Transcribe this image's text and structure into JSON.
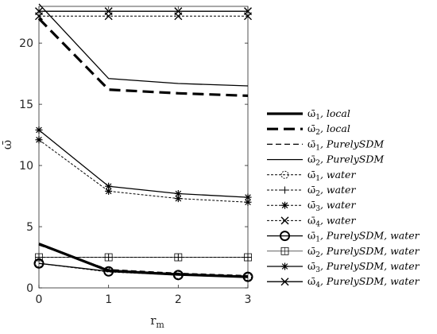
{
  "chart_data": {
    "type": "line",
    "xlabel": "r",
    "xlabel_sub": "m",
    "ylabel": "ω̄",
    "xlim": [
      0,
      3
    ],
    "ylim": [
      0,
      23
    ],
    "xticks": [
      "0",
      "1",
      "2",
      "3"
    ],
    "yticks": [
      "0",
      "5",
      "10",
      "15",
      "20"
    ],
    "grid": false,
    "legend_position": "outside-right",
    "x": [
      0,
      1,
      2,
      3
    ],
    "series": [
      {
        "name": "ω̄1, local",
        "legend_base": "ω̄",
        "legend_sub": "1",
        "legend_tail": ", local",
        "values": [
          3.6,
          1.4,
          1.1,
          0.9
        ],
        "style": "solid",
        "width": 3.2,
        "marker": "none"
      },
      {
        "name": "ω̄2, local",
        "legend_base": "ω̄",
        "legend_sub": "2",
        "legend_tail": ", local",
        "values": [
          22.0,
          16.2,
          15.9,
          15.7
        ],
        "style": "dashed-thick",
        "width": 3.2,
        "marker": "none"
      },
      {
        "name": "ω̄1, PurelySDM",
        "legend_base": "ω̄",
        "legend_sub": "1",
        "legend_tail": ", PurelySDM",
        "values": [
          3.5,
          1.5,
          1.2,
          1.0
        ],
        "style": "dashed",
        "width": 1.3,
        "marker": "none"
      },
      {
        "name": "ω̄2, PurelySDM",
        "legend_base": "ω̄",
        "legend_sub": "2",
        "legend_tail": ", PurelySDM",
        "values": [
          23.2,
          17.1,
          16.7,
          16.5
        ],
        "style": "solid",
        "width": 1.3,
        "marker": "none"
      },
      {
        "name": "ω̄1, water",
        "legend_base": "ω̄",
        "legend_sub": "1",
        "legend_tail": ", water",
        "values": [
          2.0,
          1.3,
          1.05,
          0.9
        ],
        "style": "dotted",
        "width": 1,
        "marker": "circle-small"
      },
      {
        "name": "ω̄2, water",
        "legend_base": "ω̄",
        "legend_sub": "2",
        "legend_tail": ", water",
        "values": [
          2.5,
          2.5,
          2.5,
          2.5
        ],
        "style": "dotted",
        "width": 1,
        "marker": "plus"
      },
      {
        "name": "ω̄3, water",
        "legend_base": "ω̄",
        "legend_sub": "3",
        "legend_tail": ", water",
        "values": [
          12.1,
          7.9,
          7.3,
          7.0
        ],
        "style": "dotted",
        "width": 1,
        "marker": "asterisk"
      },
      {
        "name": "ω̄4, water",
        "legend_base": "ω̄",
        "legend_sub": "4",
        "legend_tail": ", water",
        "values": [
          22.2,
          22.2,
          22.2,
          22.2
        ],
        "style": "dotted",
        "width": 1,
        "marker": "x"
      },
      {
        "name": "ω̄1, PurelySDM, water",
        "legend_base": "ω̄",
        "legend_sub": "1",
        "legend_tail": ", PurelySDM, water",
        "values": [
          2.0,
          1.35,
          1.05,
          0.9
        ],
        "style": "solid",
        "width": 1.3,
        "marker": "circle"
      },
      {
        "name": "ω̄2, PurelySDM, water",
        "legend_base": "ω̄",
        "legend_sub": "2",
        "legend_tail": ", PurelySDM, water",
        "values": [
          2.5,
          2.5,
          2.5,
          2.5
        ],
        "style": "solid-thin",
        "width": 0.7,
        "marker": "square"
      },
      {
        "name": "ω̄3, PurelySDM, water",
        "legend_base": "ω̄",
        "legend_sub": "3",
        "legend_tail": ", PurelySDM, water",
        "values": [
          12.9,
          8.3,
          7.7,
          7.4
        ],
        "style": "solid",
        "width": 1.3,
        "marker": "asterisk"
      },
      {
        "name": "ω̄4, PurelySDM, water",
        "legend_base": "ω̄",
        "legend_sub": "4",
        "legend_tail": ", PurelySDM, water",
        "values": [
          22.6,
          22.6,
          22.6,
          22.6
        ],
        "style": "solid",
        "width": 1.3,
        "marker": "x"
      }
    ]
  }
}
